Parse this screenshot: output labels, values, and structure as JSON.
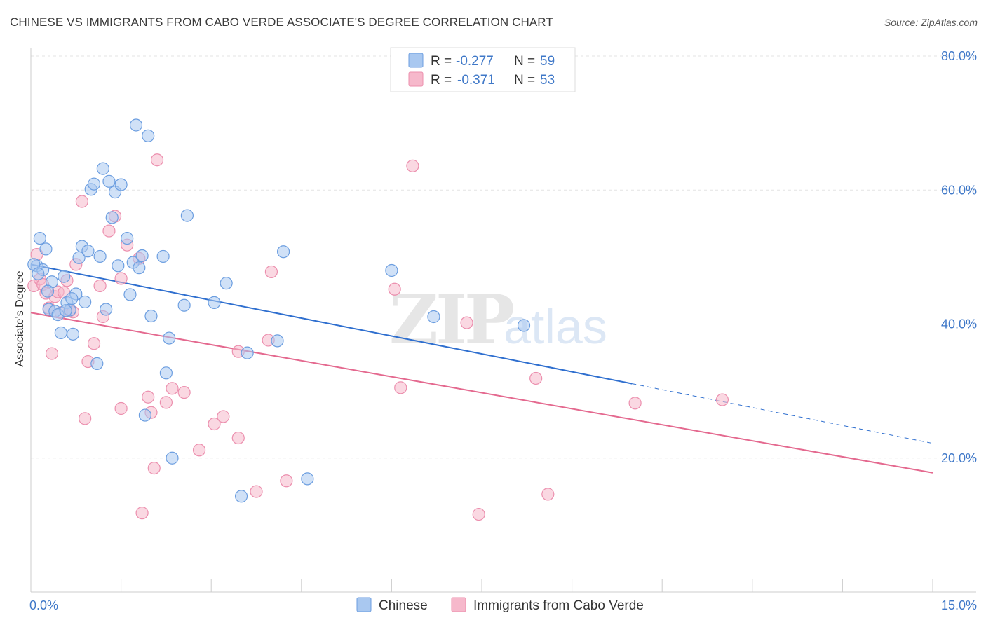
{
  "header": {
    "title": "CHINESE VS IMMIGRANTS FROM CABO VERDE ASSOCIATE'S DEGREE CORRELATION CHART",
    "source": "Source: ZipAtlas.com"
  },
  "watermark": {
    "zip": "ZIP",
    "atlas": "atlas"
  },
  "legend": {
    "rows": [
      {
        "r_label": "R =",
        "r_value": "-0.277",
        "n_label": "N =",
        "n_value": "59",
        "color": "#a9c8f0"
      },
      {
        "r_label": "R =",
        "r_value": "-0.371",
        "n_label": "N =",
        "n_value": "53",
        "color": "#f6b8cb"
      }
    ]
  },
  "colors": {
    "chinese_fill": "#a9c8f0",
    "chinese_stroke": "#6c9ee0",
    "chinese_line": "#2f6fcf",
    "caboverde_fill": "#f6b8cb",
    "caboverde_stroke": "#ec8fae",
    "caboverde_line": "#e4698f",
    "tick_text": "#3f78c8",
    "grid": "#e3e3e3"
  },
  "chart_data": {
    "type": "scatter",
    "title": "CHINESE VS IMMIGRANTS FROM CABO VERDE ASSOCIATE'S DEGREE CORRELATION CHART",
    "xlabel": "",
    "ylabel": "Associate's Degree",
    "xlim": [
      0,
      15
    ],
    "ylim": [
      0,
      80
    ],
    "x_tick_labels": [
      "0.0%",
      "15.0%"
    ],
    "y_ticks": [
      20,
      40,
      60,
      80
    ],
    "y_tick_labels": [
      "20.0%",
      "40.0%",
      "60.0%",
      "80.0%"
    ],
    "grid": true,
    "legend_position": "top-center",
    "series": [
      {
        "name": "Chinese",
        "r": -0.277,
        "n": 59,
        "trend": {
          "x": [
            0,
            10.0
          ],
          "y": [
            48.9,
            31.1
          ],
          "dashed_extension": {
            "x": [
              10.0,
              15.0
            ],
            "y": [
              31.1,
              22.2
            ]
          }
        },
        "points": [
          [
            0.1,
            48.7
          ],
          [
            0.15,
            52.8
          ],
          [
            0.2,
            48.1
          ],
          [
            0.25,
            51.2
          ],
          [
            0.3,
            42.2
          ],
          [
            0.35,
            46.3
          ],
          [
            0.4,
            41.9
          ],
          [
            0.45,
            41.4
          ],
          [
            0.5,
            38.7
          ],
          [
            0.55,
            47.1
          ],
          [
            0.6,
            43.2
          ],
          [
            0.65,
            42.1
          ],
          [
            0.7,
            38.5
          ],
          [
            0.75,
            44.5
          ],
          [
            0.8,
            49.9
          ],
          [
            0.85,
            51.6
          ],
          [
            0.9,
            43.3
          ],
          [
            0.95,
            50.9
          ],
          [
            1.0,
            60.1
          ],
          [
            1.05,
            60.9
          ],
          [
            1.1,
            34.1
          ],
          [
            1.15,
            50.1
          ],
          [
            1.2,
            63.2
          ],
          [
            1.25,
            42.2
          ],
          [
            1.3,
            61.3
          ],
          [
            1.35,
            55.9
          ],
          [
            1.4,
            59.7
          ],
          [
            1.45,
            48.7
          ],
          [
            1.5,
            60.8
          ],
          [
            1.6,
            52.8
          ],
          [
            1.65,
            44.4
          ],
          [
            1.7,
            49.2
          ],
          [
            1.75,
            69.7
          ],
          [
            1.8,
            48.4
          ],
          [
            1.85,
            50.2
          ],
          [
            1.9,
            26.4
          ],
          [
            1.95,
            68.1
          ],
          [
            2.0,
            41.2
          ],
          [
            2.2,
            50.1
          ],
          [
            2.25,
            32.7
          ],
          [
            2.3,
            37.9
          ],
          [
            2.35,
            20.0
          ],
          [
            2.55,
            42.8
          ],
          [
            2.6,
            56.2
          ],
          [
            3.05,
            43.2
          ],
          [
            3.25,
            46.1
          ],
          [
            3.5,
            14.3
          ],
          [
            3.6,
            35.7
          ],
          [
            4.1,
            37.5
          ],
          [
            4.2,
            50.8
          ],
          [
            4.6,
            16.9
          ],
          [
            6.0,
            48.0
          ],
          [
            6.7,
            41.1
          ],
          [
            8.2,
            39.8
          ],
          [
            0.05,
            48.9
          ],
          [
            0.12,
            47.5
          ],
          [
            0.28,
            44.9
          ],
          [
            0.58,
            42.0
          ],
          [
            0.68,
            43.8
          ]
        ]
      },
      {
        "name": "Immigrants from Cabo Verde",
        "r": -0.371,
        "n": 53,
        "trend": {
          "x": [
            0,
            15.0
          ],
          "y": [
            41.7,
            17.8
          ]
        },
        "points": [
          [
            0.05,
            45.7
          ],
          [
            0.1,
            50.4
          ],
          [
            0.15,
            46.7
          ],
          [
            0.2,
            45.9
          ],
          [
            0.25,
            44.6
          ],
          [
            0.3,
            42.4
          ],
          [
            0.35,
            35.6
          ],
          [
            0.4,
            44.1
          ],
          [
            0.45,
            44.8
          ],
          [
            0.5,
            41.7
          ],
          [
            0.55,
            44.7
          ],
          [
            0.6,
            46.5
          ],
          [
            0.65,
            42.0
          ],
          [
            0.7,
            41.8
          ],
          [
            0.75,
            48.9
          ],
          [
            0.85,
            58.3
          ],
          [
            0.9,
            25.9
          ],
          [
            0.95,
            34.4
          ],
          [
            1.05,
            37.1
          ],
          [
            1.15,
            45.7
          ],
          [
            1.2,
            41.1
          ],
          [
            1.3,
            53.9
          ],
          [
            1.4,
            56.1
          ],
          [
            1.5,
            46.8
          ],
          [
            1.5,
            27.4
          ],
          [
            1.6,
            51.8
          ],
          [
            1.8,
            49.8
          ],
          [
            1.85,
            11.8
          ],
          [
            1.95,
            29.1
          ],
          [
            2.0,
            26.8
          ],
          [
            2.05,
            18.5
          ],
          [
            2.1,
            64.5
          ],
          [
            2.25,
            28.3
          ],
          [
            2.35,
            30.4
          ],
          [
            2.55,
            29.8
          ],
          [
            2.8,
            21.2
          ],
          [
            3.05,
            25.1
          ],
          [
            3.2,
            26.2
          ],
          [
            3.45,
            23.0
          ],
          [
            3.45,
            35.9
          ],
          [
            3.75,
            15.0
          ],
          [
            3.95,
            37.6
          ],
          [
            4.0,
            47.8
          ],
          [
            4.25,
            16.6
          ],
          [
            6.05,
            45.2
          ],
          [
            6.15,
            30.5
          ],
          [
            6.35,
            63.6
          ],
          [
            7.25,
            40.2
          ],
          [
            7.45,
            11.6
          ],
          [
            8.4,
            31.9
          ],
          [
            8.6,
            14.6
          ],
          [
            10.05,
            28.2
          ],
          [
            11.5,
            28.7
          ]
        ]
      }
    ]
  },
  "bottom_legend": {
    "items": [
      "Chinese",
      "Immigrants from Cabo Verde"
    ]
  }
}
